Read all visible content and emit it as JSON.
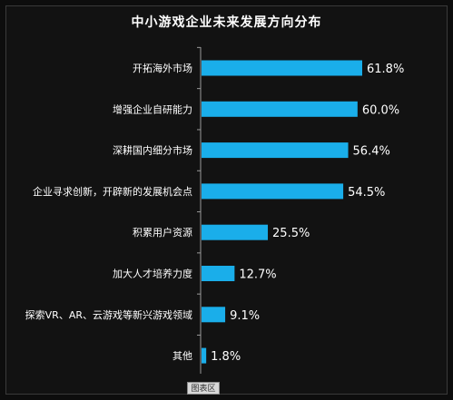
{
  "chart_data": {
    "type": "bar",
    "orientation": "horizontal",
    "title": "中小游戏企业未来发展方向分布",
    "categories": [
      "开拓海外市场",
      "增强企业自研能力",
      "深耕国内细分市场",
      "企业寻求创新，开辟新的发展机会点",
      "积累用户资源",
      "加大人才培养力度",
      "探索VR、AR、云游戏等新兴游戏领域",
      "其他"
    ],
    "values": [
      61.8,
      60.0,
      56.4,
      54.5,
      25.5,
      12.7,
      9.1,
      1.8
    ],
    "value_labels": [
      "61.8%",
      "60.0%",
      "56.4%",
      "54.5%",
      "25.5%",
      "12.7%",
      "9.1%",
      "1.8%"
    ],
    "xlim": [
      0,
      70
    ],
    "bar_color": "#1aaeea",
    "grid": false
  },
  "footer": {
    "label": "图表区"
  }
}
